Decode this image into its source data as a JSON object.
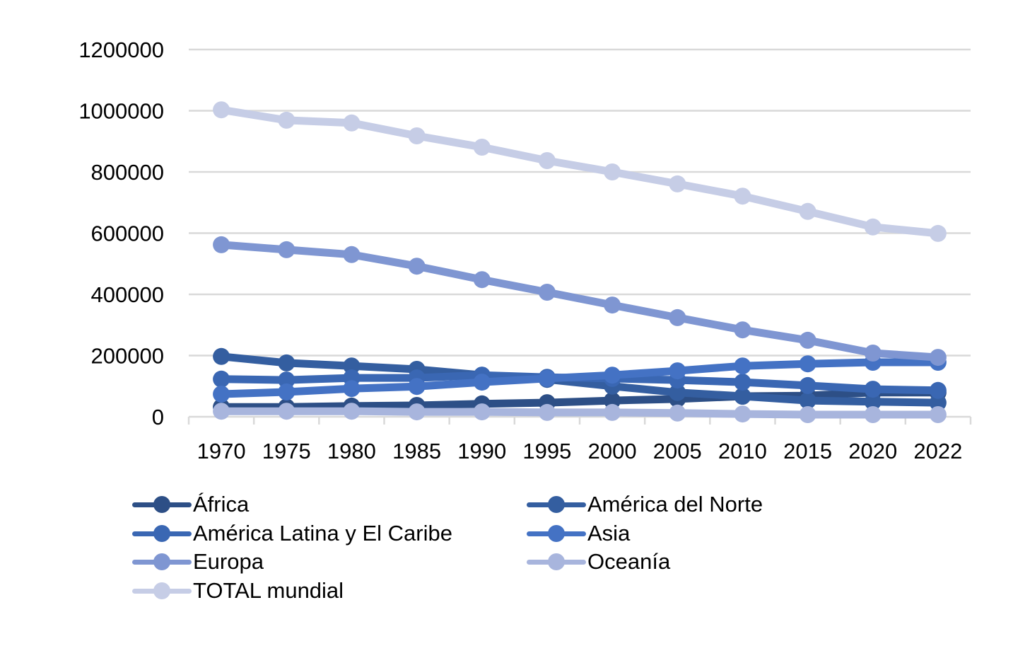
{
  "chart_data": {
    "type": "line",
    "title": "",
    "xlabel": "",
    "ylabel": "",
    "ylim": [
      0,
      1200000
    ],
    "yticks": [
      "0",
      "200000",
      "400000",
      "600000",
      "800000",
      "1000000",
      "1200000"
    ],
    "ytick_values": [
      0,
      200000,
      400000,
      600000,
      800000,
      1000000,
      1200000
    ],
    "grid": true,
    "legend_position": "bottom",
    "categories": [
      "1970",
      "1975",
      "1980",
      "1985",
      "1990",
      "1995",
      "2000",
      "2005",
      "2010",
      "2015",
      "2020",
      "2022"
    ],
    "series": [
      {
        "name": "África",
        "color": "#2d4f86",
        "values": [
          32000,
          32000,
          35000,
          37000,
          42000,
          46000,
          53000,
          58000,
          67000,
          69000,
          79000,
          79000
        ]
      },
      {
        "name": "América del Norte",
        "color": "#345ea0",
        "values": [
          197000,
          176000,
          166000,
          155000,
          136000,
          122000,
          100000,
          79000,
          67000,
          53000,
          49000,
          46000
        ]
      },
      {
        "name": "América Latina y El Caribe",
        "color": "#3a67b3",
        "values": [
          123000,
          120000,
          127000,
          127000,
          136000,
          129000,
          125000,
          120000,
          113000,
          102000,
          90000,
          86000
        ]
      },
      {
        "name": "Asia",
        "color": "#4472c4",
        "values": [
          74000,
          81000,
          92000,
          99000,
          113000,
          125000,
          136000,
          150000,
          166000,
          173000,
          178000,
          178000
        ]
      },
      {
        "name": "Europa",
        "color": "#7f96d2",
        "values": [
          562000,
          546000,
          530000,
          492000,
          448000,
          407000,
          365000,
          324000,
          284000,
          250000,
          208000,
          194000
        ]
      },
      {
        "name": "Oceanía",
        "color": "#a8b5dd",
        "values": [
          18000,
          18000,
          18000,
          16000,
          16000,
          14000,
          14000,
          12000,
          9000,
          7000,
          7000,
          7000
        ]
      },
      {
        "name": "TOTAL mundial",
        "color": "#c6cde6",
        "values": [
          1003000,
          969000,
          960000,
          918000,
          881000,
          837000,
          800000,
          761000,
          721000,
          671000,
          620000,
          599000
        ]
      }
    ]
  },
  "colors": {
    "gridline": "#d9d9d9",
    "axis": "#d9d9d9",
    "text": "#000000"
  }
}
